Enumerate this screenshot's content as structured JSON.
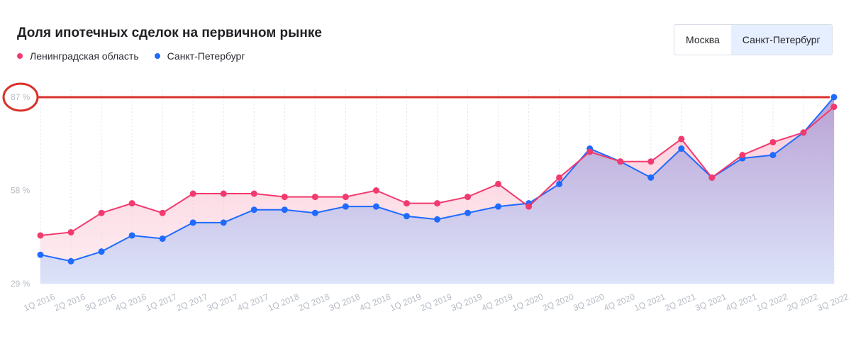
{
  "title": "Доля ипотечных сделок на первичном рынке",
  "tabs": [
    {
      "label": "Москва",
      "active": false
    },
    {
      "label": "Санкт-Петербург",
      "active": true
    }
  ],
  "colors": {
    "lenobl": "#f23a6e",
    "spb": "#1f6bff",
    "highlight": "#d9312a",
    "grid": "#dfe2e8",
    "tick": "#b7bcc6"
  },
  "chart_data": {
    "type": "line",
    "x": [
      "1Q 2016",
      "2Q 2016",
      "3Q 2016",
      "4Q 2016",
      "1Q 2017",
      "2Q 2017",
      "3Q 2017",
      "4Q 2017",
      "1Q 2018",
      "2Q 2018",
      "3Q 2018",
      "4Q 2018",
      "1Q 2019",
      "2Q 2019",
      "3Q 2019",
      "4Q 2019",
      "1Q 2020",
      "2Q 2020",
      "3Q 2020",
      "4Q 2020",
      "1Q 2021",
      "2Q 2021",
      "3Q 2021",
      "4Q 2021",
      "1Q 2022",
      "2Q 2022",
      "3Q 2022"
    ],
    "series": [
      {
        "name": "Ленинградская область",
        "color_key": "lenobl",
        "values": [
          44,
          45,
          51,
          54,
          51,
          57,
          57,
          57,
          56,
          56,
          56,
          58,
          54,
          54,
          56,
          60,
          53,
          62,
          70,
          67,
          67,
          74,
          62,
          69,
          73,
          76,
          84
        ]
      },
      {
        "name": "Санкт-Петербург",
        "color_key": "spb",
        "values": [
          38,
          36,
          39,
          44,
          43,
          48,
          48,
          52,
          52,
          51,
          53,
          53,
          50,
          49,
          51,
          53,
          54,
          60,
          71,
          67,
          62,
          71,
          62,
          68,
          69,
          76,
          87
        ]
      }
    ],
    "y_ticks": [
      "87 %",
      "58 %",
      "29 %"
    ],
    "ylim": [
      29,
      87
    ],
    "grid": "vertical dotted",
    "legend_position": "top-left",
    "highlight_value": 87
  }
}
